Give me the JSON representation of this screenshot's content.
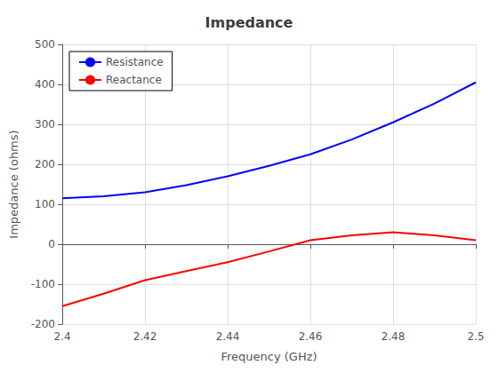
{
  "chart_data": {
    "type": "line",
    "title": "Impedance",
    "xlabel": "Frequency (GHz)",
    "ylabel": "Impedance (ohms)",
    "x": [
      2.4,
      2.41,
      2.42,
      2.43,
      2.44,
      2.45,
      2.46,
      2.47,
      2.48,
      2.49,
      2.5
    ],
    "series": [
      {
        "name": "Resistance",
        "color": "#0000ff",
        "values": [
          115,
          120,
          130,
          148,
          170,
          196,
          225,
          262,
          305,
          352,
          405
        ]
      },
      {
        "name": "Reactance",
        "color": "#ff0000",
        "values": [
          -155,
          -124,
          -90,
          -67,
          -45,
          -18,
          10,
          22,
          30,
          22,
          10
        ]
      }
    ],
    "xlim": [
      2.4,
      2.5
    ],
    "ylim": [
      -200,
      500
    ],
    "xticks": [
      2.4,
      2.42,
      2.44,
      2.46,
      2.48,
      2.5
    ],
    "yticks": [
      -200,
      -100,
      0,
      100,
      200,
      300,
      400,
      500
    ],
    "grid": true,
    "legend": "upper left"
  }
}
